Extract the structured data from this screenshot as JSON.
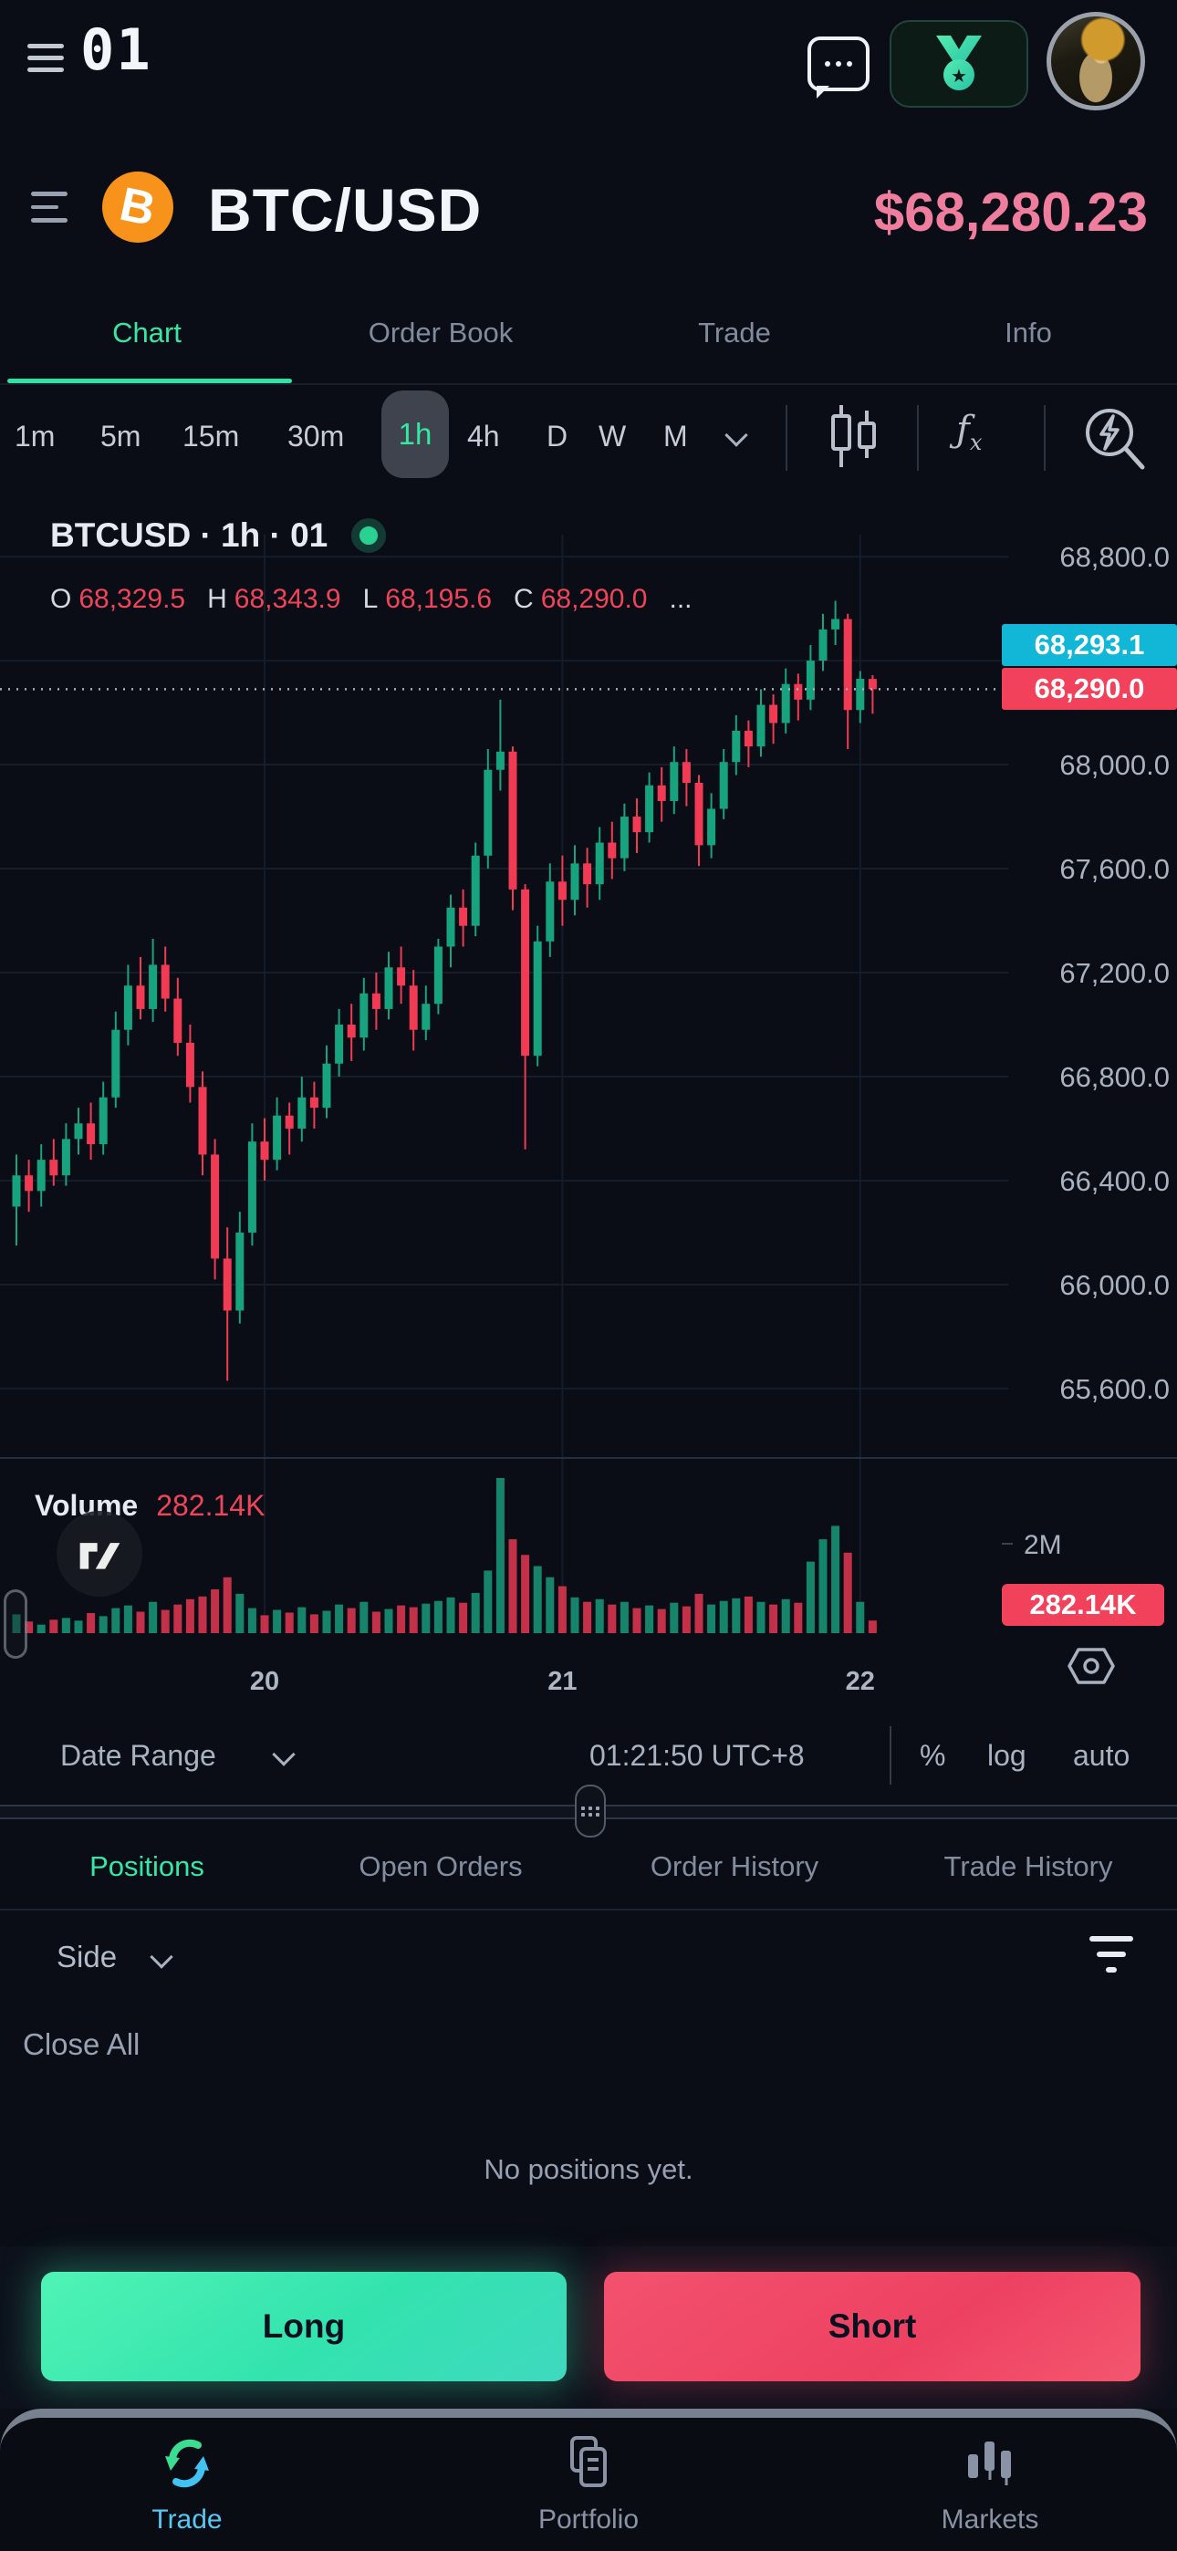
{
  "topbar": {
    "logo": "01"
  },
  "symbol_row": {
    "coin_letter": "B",
    "pair": "BTC/USD",
    "price": "$68,280.23"
  },
  "main_tabs": {
    "items": [
      {
        "label": "Chart",
        "active": true
      },
      {
        "label": "Order Book",
        "active": false
      },
      {
        "label": "Trade",
        "active": false
      },
      {
        "label": "Info",
        "active": false
      }
    ]
  },
  "timeframes": {
    "items": [
      "1m",
      "5m",
      "15m",
      "30m",
      "1h",
      "4h",
      "D",
      "W",
      "M"
    ],
    "selected": "1h"
  },
  "chart": {
    "title": "BTCUSD · 1h · 01",
    "ohlc": {
      "o_label": "O",
      "o_value": "68,329.5",
      "h_label": "H",
      "h_value": "68,343.9",
      "l_label": "L",
      "l_value": "68,195.6",
      "c_label": "C",
      "c_value": "68,290.0",
      "ellipsis": "..."
    },
    "volume_label": "Volume",
    "volume_value": "282.14K",
    "tv_logo": "TV"
  },
  "chart_data": {
    "type": "candlestick",
    "symbol": "BTCUSD",
    "interval": "1h",
    "title": "BTCUSD · 1h · 01",
    "current": {
      "open": 68329.5,
      "high": 68343.9,
      "low": 68195.6,
      "close": 68290.0
    },
    "last_price": 68290.0,
    "ask_price": 68293.1,
    "ylim": [
      65333,
      69046
    ],
    "y_ticks": [
      68800,
      68000,
      67600,
      67200,
      66800,
      66400,
      66000,
      65600
    ],
    "y_gridlines": [
      68800,
      68400,
      68000,
      67600,
      67200,
      66800,
      66400,
      66000,
      65600
    ],
    "x_ticks": [
      {
        "label": "20",
        "candle_index": 20
      },
      {
        "label": "21",
        "candle_index": 44
      },
      {
        "label": "22",
        "candle_index": 68
      }
    ],
    "volume_axis_tick": {
      "label": "2M",
      "value_k": 2000
    },
    "volume_badge": "282.14K",
    "legend_position": "top-left",
    "grid": true,
    "candles": [
      [
        66300,
        66500,
        66150,
        66420
      ],
      [
        66420,
        66480,
        66280,
        66360
      ],
      [
        66360,
        66540,
        66300,
        66480
      ],
      [
        66480,
        66560,
        66380,
        66420
      ],
      [
        66420,
        66620,
        66380,
        66560
      ],
      [
        66560,
        66680,
        66500,
        66620
      ],
      [
        66620,
        66700,
        66480,
        66540
      ],
      [
        66540,
        66780,
        66500,
        66720
      ],
      [
        66720,
        67050,
        66680,
        66980
      ],
      [
        66980,
        67230,
        66920,
        67150
      ],
      [
        67150,
        67260,
        67020,
        67060
      ],
      [
        67060,
        67330,
        67010,
        67230
      ],
      [
        67230,
        67300,
        67050,
        67100
      ],
      [
        67100,
        67180,
        66880,
        66930
      ],
      [
        66930,
        67000,
        66700,
        66760
      ],
      [
        66760,
        66820,
        66420,
        66500
      ],
      [
        66500,
        66560,
        66020,
        66100
      ],
      [
        66100,
        66220,
        65630,
        65900
      ],
      [
        65900,
        66280,
        65850,
        66200
      ],
      [
        66200,
        66620,
        66150,
        66550
      ],
      [
        66550,
        66640,
        66400,
        66480
      ],
      [
        66480,
        66720,
        66440,
        66650
      ],
      [
        66650,
        66700,
        66500,
        66600
      ],
      [
        66600,
        66800,
        66550,
        66720
      ],
      [
        66720,
        66780,
        66600,
        66680
      ],
      [
        66680,
        66920,
        66640,
        66850
      ],
      [
        66850,
        67060,
        66800,
        67000
      ],
      [
        67000,
        67080,
        66860,
        66950
      ],
      [
        66950,
        67180,
        66900,
        67120
      ],
      [
        67120,
        67200,
        66980,
        67060
      ],
      [
        67060,
        67280,
        67020,
        67220
      ],
      [
        67220,
        67300,
        67080,
        67150
      ],
      [
        67150,
        67210,
        66900,
        66980
      ],
      [
        66980,
        67150,
        66940,
        67080
      ],
      [
        67080,
        67330,
        67040,
        67300
      ],
      [
        67300,
        67500,
        67220,
        67450
      ],
      [
        67450,
        67520,
        67300,
        67380
      ],
      [
        67380,
        67700,
        67340,
        67650
      ],
      [
        67650,
        68060,
        67600,
        67980
      ],
      [
        67980,
        68250,
        67900,
        68050
      ],
      [
        68050,
        68070,
        67440,
        67520
      ],
      [
        67520,
        67540,
        66520,
        66880
      ],
      [
        66880,
        67380,
        66840,
        67320
      ],
      [
        67320,
        67620,
        67260,
        67550
      ],
      [
        67550,
        67650,
        67380,
        67480
      ],
      [
        67480,
        67690,
        67420,
        67620
      ],
      [
        67620,
        67680,
        67450,
        67540
      ],
      [
        67540,
        67760,
        67480,
        67700
      ],
      [
        67700,
        67780,
        67560,
        67640
      ],
      [
        67640,
        67850,
        67590,
        67800
      ],
      [
        67800,
        67870,
        67660,
        67740
      ],
      [
        67740,
        67970,
        67700,
        67920
      ],
      [
        67920,
        67990,
        67780,
        67860
      ],
      [
        67860,
        68070,
        67810,
        68010
      ],
      [
        68010,
        68060,
        67840,
        67930
      ],
      [
        67930,
        67960,
        67610,
        67690
      ],
      [
        67690,
        67890,
        67640,
        67830
      ],
      [
        67830,
        68060,
        67790,
        68010
      ],
      [
        68010,
        68190,
        67960,
        68130
      ],
      [
        68130,
        68170,
        67990,
        68070
      ],
      [
        68070,
        68290,
        68030,
        68230
      ],
      [
        68230,
        68270,
        68080,
        68160
      ],
      [
        68160,
        68370,
        68120,
        68310
      ],
      [
        68310,
        68350,
        68170,
        68250
      ],
      [
        68250,
        68460,
        68210,
        68400
      ],
      [
        68400,
        68580,
        68360,
        68520
      ],
      [
        68520,
        68630,
        68460,
        68560
      ],
      [
        68560,
        68580,
        68060,
        68210
      ],
      [
        68210,
        68360,
        68160,
        68330
      ],
      [
        68329.5,
        68343.9,
        68195.6,
        68290.0
      ]
    ],
    "volumes_k": [
      420,
      260,
      190,
      300,
      340,
      280,
      450,
      380,
      560,
      620,
      480,
      700,
      520,
      640,
      760,
      820,
      980,
      1250,
      880,
      560,
      400,
      520,
      460,
      580,
      420,
      500,
      640,
      560,
      700,
      480,
      540,
      620,
      580,
      660,
      720,
      800,
      680,
      900,
      1400,
      3470,
      2100,
      1750,
      1500,
      1250,
      1050,
      800,
      700,
      760,
      640,
      700,
      560,
      620,
      540,
      680,
      600,
      880,
      640,
      720,
      780,
      820,
      700,
      640,
      760,
      680,
      1600,
      2100,
      2400,
      1800,
      700,
      282.14
    ]
  },
  "toolbar": {
    "date_range": "Date Range",
    "clock": "01:21:50 UTC+8",
    "percent": "%",
    "log": "log",
    "auto": "auto"
  },
  "positions_panel": {
    "tabs": [
      {
        "label": "Positions",
        "active": true
      },
      {
        "label": "Open Orders",
        "active": false
      },
      {
        "label": "Order History",
        "active": false
      },
      {
        "label": "Trade History",
        "active": false
      }
    ],
    "side_label": "Side",
    "close_all": "Close All",
    "empty_message": "No positions yet."
  },
  "trade_buttons": {
    "long": "Long",
    "short": "Short"
  },
  "bottom_nav": {
    "items": [
      {
        "label": "Trade",
        "active": true
      },
      {
        "label": "Portfolio",
        "active": false
      },
      {
        "label": "Markets",
        "active": false
      }
    ]
  },
  "colors": {
    "accent_teal": "#35e8a5",
    "price_pink": "#ee7d9e",
    "value_red": "#ef4459",
    "candle_up": "#18a37f",
    "candle_down": "#f13b55",
    "ask_badge_cyan": "#12b6d6",
    "last_badge_red": "#f2415a",
    "grid": "#151c2a",
    "axis_text": "#aab2c0"
  }
}
